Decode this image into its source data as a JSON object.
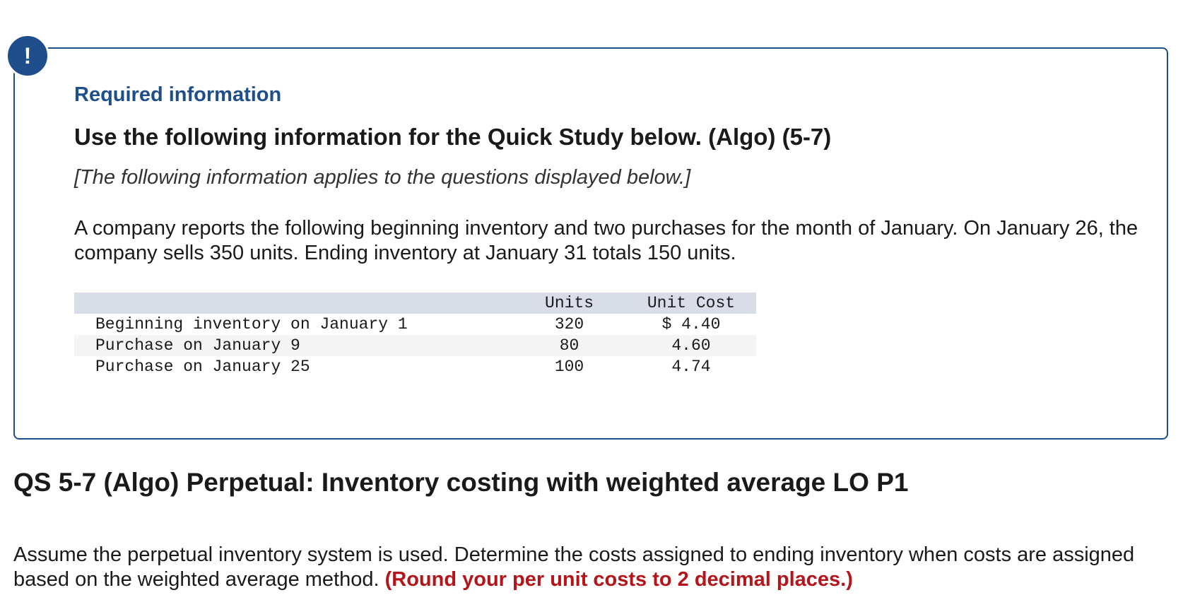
{
  "info_box": {
    "alert_icon": "exclamation-icon",
    "alert_glyph": "!",
    "label": "Required information",
    "heading": "Use the following information for the Quick Study below. (Algo) (5-7)",
    "note": "[The following information applies to the questions displayed below.]",
    "scenario": "A company reports the following beginning inventory and two purchases for the month of January. On January 26, the company sells 350 units. Ending inventory at January 31 totals 150 units.",
    "table": {
      "columns": [
        "",
        "Units",
        "Unit Cost"
      ],
      "rows": [
        {
          "item": "Beginning inventory on January 1",
          "units": "320",
          "unit_cost": "$ 4.40"
        },
        {
          "item": "Purchase on January 9",
          "units": "80",
          "unit_cost": "4.60"
        },
        {
          "item": "Purchase on January 25",
          "units": "100",
          "unit_cost": "4.74"
        }
      ]
    }
  },
  "question": {
    "title": "QS 5-7 (Algo) Perpetual: Inventory costing with weighted average LO P1",
    "instructions": "Assume the perpetual inventory system is used. Determine the costs assigned to ending inventory when costs are assigned based on the weighted average method.",
    "round_note": "(Round your per unit costs to 2 decimal places.)"
  },
  "colors": {
    "accent": "#1f4e8c",
    "warning": "#b3151b",
    "table_header_bg": "#d8dde8",
    "table_alt_row_bg": "#f4f4f4"
  }
}
